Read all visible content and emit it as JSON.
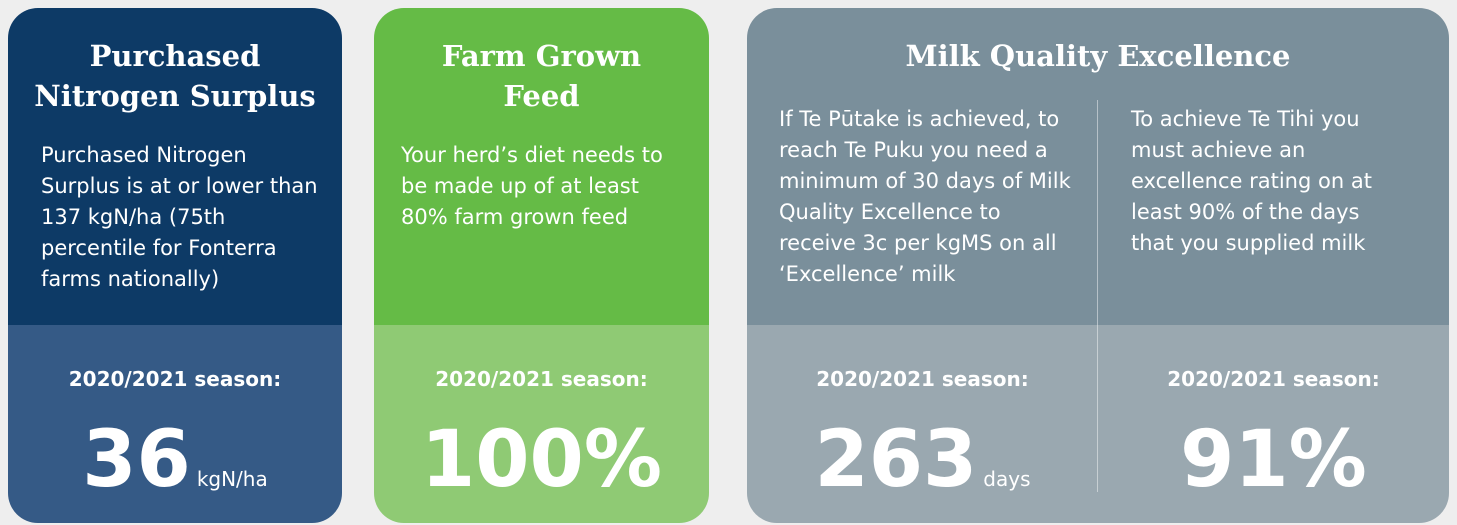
{
  "cards": [
    {
      "title": "Purchased Nitrogen Surplus",
      "text": "Purchased Nitrogen Surplus is at or lower than 137 kgN/ha (75th percentile for Fonterra farms nationally)",
      "season": "2020/2021 season:",
      "value": "36",
      "unit": "kgN/ha"
    },
    {
      "title": "Farm Grown Feed",
      "text": "Your herd’s diet needs to be made up of at least 80% farm grown feed",
      "season": "2020/2021 season:",
      "value": "100%"
    },
    {
      "title": "Milk Quality Excellence",
      "columns": [
        {
          "text": "If Te Pūtake is achieved, to reach Te Puku you need a minimum of 30 days of Milk Quality Excellence to receive 3c per kgMS on all ‘Excellence’ milk",
          "season": "2020/2021 season:",
          "value": "263",
          "unit": "days"
        },
        {
          "text": "To achieve Te Tihi you must achieve an excellence rating on at least 90% of the days that you supplied milk",
          "season": "2020/2021 season:",
          "value": "91%"
        }
      ]
    }
  ]
}
